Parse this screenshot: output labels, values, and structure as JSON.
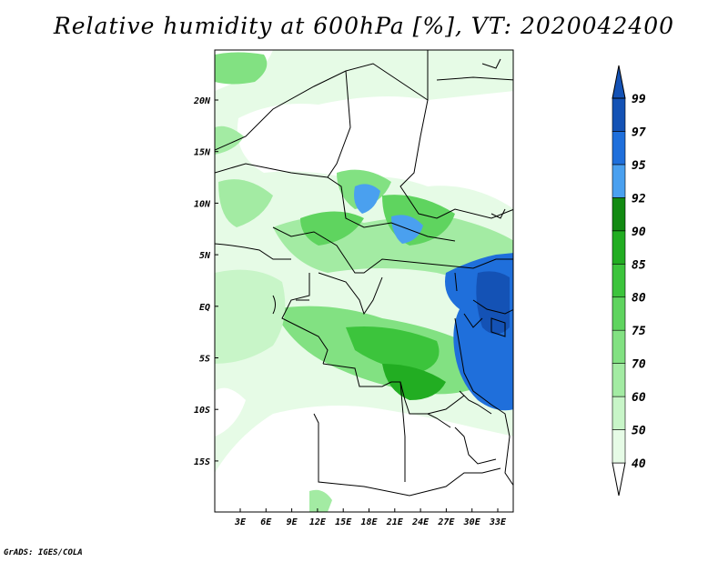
{
  "title": "Relative humidity at 600hPa [%], VT: 2020042400",
  "credit": "GrADS: IGES/COLA",
  "map": {
    "lon_labels": [
      "3E",
      "6E",
      "9E",
      "12E",
      "15E",
      "18E",
      "21E",
      "24E",
      "27E",
      "30E",
      "33E"
    ],
    "lat_labels": [
      "20N",
      "15N",
      "10N",
      "5N",
      "EQ",
      "5S",
      "10S",
      "15S"
    ]
  },
  "colorbar": {
    "levels": [
      "40",
      "50",
      "60",
      "70",
      "75",
      "80",
      "85",
      "90",
      "92",
      "95",
      "97",
      "99"
    ],
    "colors": [
      "#ffffff",
      "#e6fbe6",
      "#c8f5c8",
      "#a3eba3",
      "#82e182",
      "#5fd45f",
      "#3cc43c",
      "#22ad22",
      "#128a12",
      "#4aa0ef",
      "#1f6fdb",
      "#1452b5"
    ]
  }
}
